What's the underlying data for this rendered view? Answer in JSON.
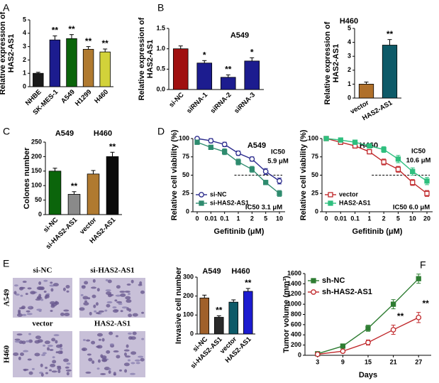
{
  "chart_data": [
    {
      "type": "bar",
      "panel": "A",
      "ylabel": [
        "Relative expression of",
        "HAS2-AS1"
      ],
      "categories": [
        "NHBE",
        "SK-MES-1",
        "A549",
        "H1299",
        "H460"
      ],
      "values": [
        1.0,
        3.5,
        3.6,
        2.8,
        2.6
      ],
      "errors": [
        0.08,
        0.3,
        0.3,
        0.2,
        0.22
      ],
      "colors": [
        "#1a1a1a",
        "#1c1c8f",
        "#0b650b",
        "#b07a30",
        "#d2d23a"
      ],
      "significance": [
        null,
        "**",
        "**",
        "**",
        "**"
      ],
      "ylim": [
        0,
        5
      ],
      "yticks": [
        0,
        1,
        2,
        3,
        4,
        5
      ],
      "xtick_rotation": 45
    },
    {
      "type": "bar",
      "panel": "B",
      "title": "A549",
      "ylabel": [
        "Relative expression of",
        "HAS2-AS1"
      ],
      "categories": [
        "si-NC",
        "siRNA-1",
        "siRNA-2",
        "siRNA-3"
      ],
      "values": [
        1.0,
        0.65,
        0.3,
        0.7
      ],
      "errors": [
        0.07,
        0.06,
        0.06,
        0.08
      ],
      "colors": [
        "#a01010",
        "#1c1c8f",
        "#1c1c8f",
        "#1c1c8f"
      ],
      "significance": [
        null,
        "*",
        "**",
        "*"
      ],
      "ylim": [
        0,
        1.5
      ],
      "yticks": [
        {
          "value": 0,
          "label": "0.0"
        },
        0.5,
        {
          "value": 1,
          "label": "1.0"
        },
        1.5
      ],
      "xtick_rotation": 45
    },
    {
      "type": "bar",
      "title": "H460",
      "ylabel": [
        "Relative expression of",
        "HAS2-AS1"
      ],
      "categories": [
        "vector",
        "HAS2-AS1"
      ],
      "values": [
        1.0,
        3.8
      ],
      "errors": [
        0.15,
        0.4
      ],
      "colors": [
        "#b0702a",
        "#0d5a68"
      ],
      "significance": [
        null,
        "**"
      ],
      "ylim": [
        0,
        5
      ],
      "yticks": [
        0,
        1,
        2,
        3,
        4,
        5
      ],
      "xtick_rotation": 30
    },
    {
      "type": "bar",
      "panel": "C",
      "ylabel": [
        "Colones number"
      ],
      "group_labels": [
        "A549",
        "H460"
      ],
      "categories": [
        "si-NC",
        "si-HAS2-AS1",
        "vector",
        "HAS2-AS1"
      ],
      "values": [
        150,
        70,
        140,
        200
      ],
      "errors": [
        10,
        9,
        12,
        15
      ],
      "colors": [
        "#0b650b",
        "#8a8a8a",
        "#b07a30",
        "#0a0a0a"
      ],
      "significance": [
        null,
        "**",
        null,
        "**"
      ],
      "ylim": [
        0,
        250
      ],
      "yticks": [
        0,
        50,
        100,
        150,
        200,
        250
      ],
      "xtick_rotation": 45
    },
    {
      "type": "line",
      "panel": "D",
      "title": "A549",
      "ylabel": [
        "Relative cell viability (%)"
      ],
      "xlabel": "Gefitinib (μM)",
      "categories": [
        "0",
        "0.01",
        "0.1",
        "1",
        "2",
        "5",
        "10"
      ],
      "series": [
        {
          "name": "si-NC",
          "color": "#2a2a8c",
          "marker": "circle-open",
          "values": [
            100,
            97,
            92,
            80,
            72,
            55,
            42
          ],
          "errors": [
            2,
            3,
            3,
            3,
            3,
            4,
            4
          ]
        },
        {
          "name": "si-HAS2-AS1",
          "color": "#2e8b6e",
          "marker": "square",
          "values": [
            95,
            88,
            82,
            68,
            58,
            40,
            25
          ],
          "errors": [
            3,
            3,
            4,
            4,
            4,
            3,
            4
          ]
        }
      ],
      "reference_line": 50,
      "annotations": [
        [
          "IC50",
          "5.9 μM"
        ],
        [
          "IC50 3.1 μM"
        ]
      ],
      "legend": "lower left",
      "ylim": [
        0,
        100
      ],
      "yticks": [
        0,
        25,
        50,
        75,
        100
      ]
    },
    {
      "type": "line",
      "title": "H460",
      "ylabel": [
        "Relative cell viability (%)"
      ],
      "xlabel": "Gefitinib (μM)",
      "categories": [
        "0",
        "0.01",
        "0.1",
        "1",
        "2",
        "5",
        "10",
        "20"
      ],
      "series": [
        {
          "name": "vector",
          "color": "#c0282b",
          "marker": "square-open",
          "values": [
            100,
            95,
            90,
            82,
            68,
            58,
            40,
            25
          ],
          "errors": [
            2,
            3,
            3,
            3,
            4,
            4,
            4,
            4
          ]
        },
        {
          "name": "HAS2-AS1",
          "color": "#2ebf7e",
          "marker": "square",
          "values": [
            100,
            98,
            95,
            90,
            85,
            72,
            55,
            42
          ],
          "errors": [
            2,
            2,
            3,
            3,
            4,
            5,
            5,
            5
          ]
        }
      ],
      "reference_line": 50,
      "annotations": [
        [
          "IC50",
          "10.6 μM"
        ],
        [
          "IC50 6.0 μM"
        ]
      ],
      "legend": "lower left",
      "ylim": [
        0,
        100
      ],
      "yticks": [
        0,
        25,
        50,
        75,
        100
      ]
    },
    {
      "type": "bar",
      "ylabel": [
        "Invasive cell number"
      ],
      "group_labels": [
        "A549",
        "H460"
      ],
      "categories": [
        "si-NC",
        "si-HAS2-AS1",
        "vector",
        "HAS2-AS1"
      ],
      "values": [
        190,
        88,
        168,
        225
      ],
      "errors": [
        15,
        8,
        12,
        15
      ],
      "colors": [
        "#a0602a",
        "#2a2a2a",
        "#0d5a68",
        "#1c1cd0"
      ],
      "significance": [
        null,
        "**",
        null,
        "**"
      ],
      "ylim": [
        0,
        300
      ],
      "yticks": [
        0,
        100,
        200,
        300
      ],
      "xtick_rotation": 45
    },
    {
      "type": "line",
      "panel": "F",
      "ylabel": [
        "Tumor volume (mm³)"
      ],
      "xlabel": "Days",
      "x": [
        3,
        9,
        15,
        21,
        27
      ],
      "series": [
        {
          "name": "sh-NC",
          "color": "#2e7d32",
          "marker": "square",
          "values": [
            30,
            180,
            530,
            1000,
            1500
          ],
          "errors": [
            15,
            40,
            60,
            90,
            90
          ]
        },
        {
          "name": "sh-HAS2-AS1",
          "color": "#c0282b",
          "marker": "circle-open",
          "values": [
            20,
            80,
            250,
            500,
            740
          ],
          "errors": [
            10,
            30,
            50,
            90,
            100
          ]
        }
      ],
      "significance": [
        null,
        null,
        null,
        "**",
        "**"
      ],
      "legend": "upper left",
      "xlim": [
        0,
        30
      ],
      "xticks": [
        3,
        9,
        15,
        21,
        27
      ],
      "ylim": [
        0,
        1600
      ],
      "yticks": [
        0,
        200,
        400,
        600,
        800,
        1000,
        1200,
        1400,
        1600
      ]
    }
  ],
  "images": {
    "panel": "E",
    "columns": [
      "si-NC",
      "si-HAS2-AS1",
      "vector",
      "HAS2-AS1"
    ],
    "rows": [
      "A549",
      "H460"
    ]
  }
}
